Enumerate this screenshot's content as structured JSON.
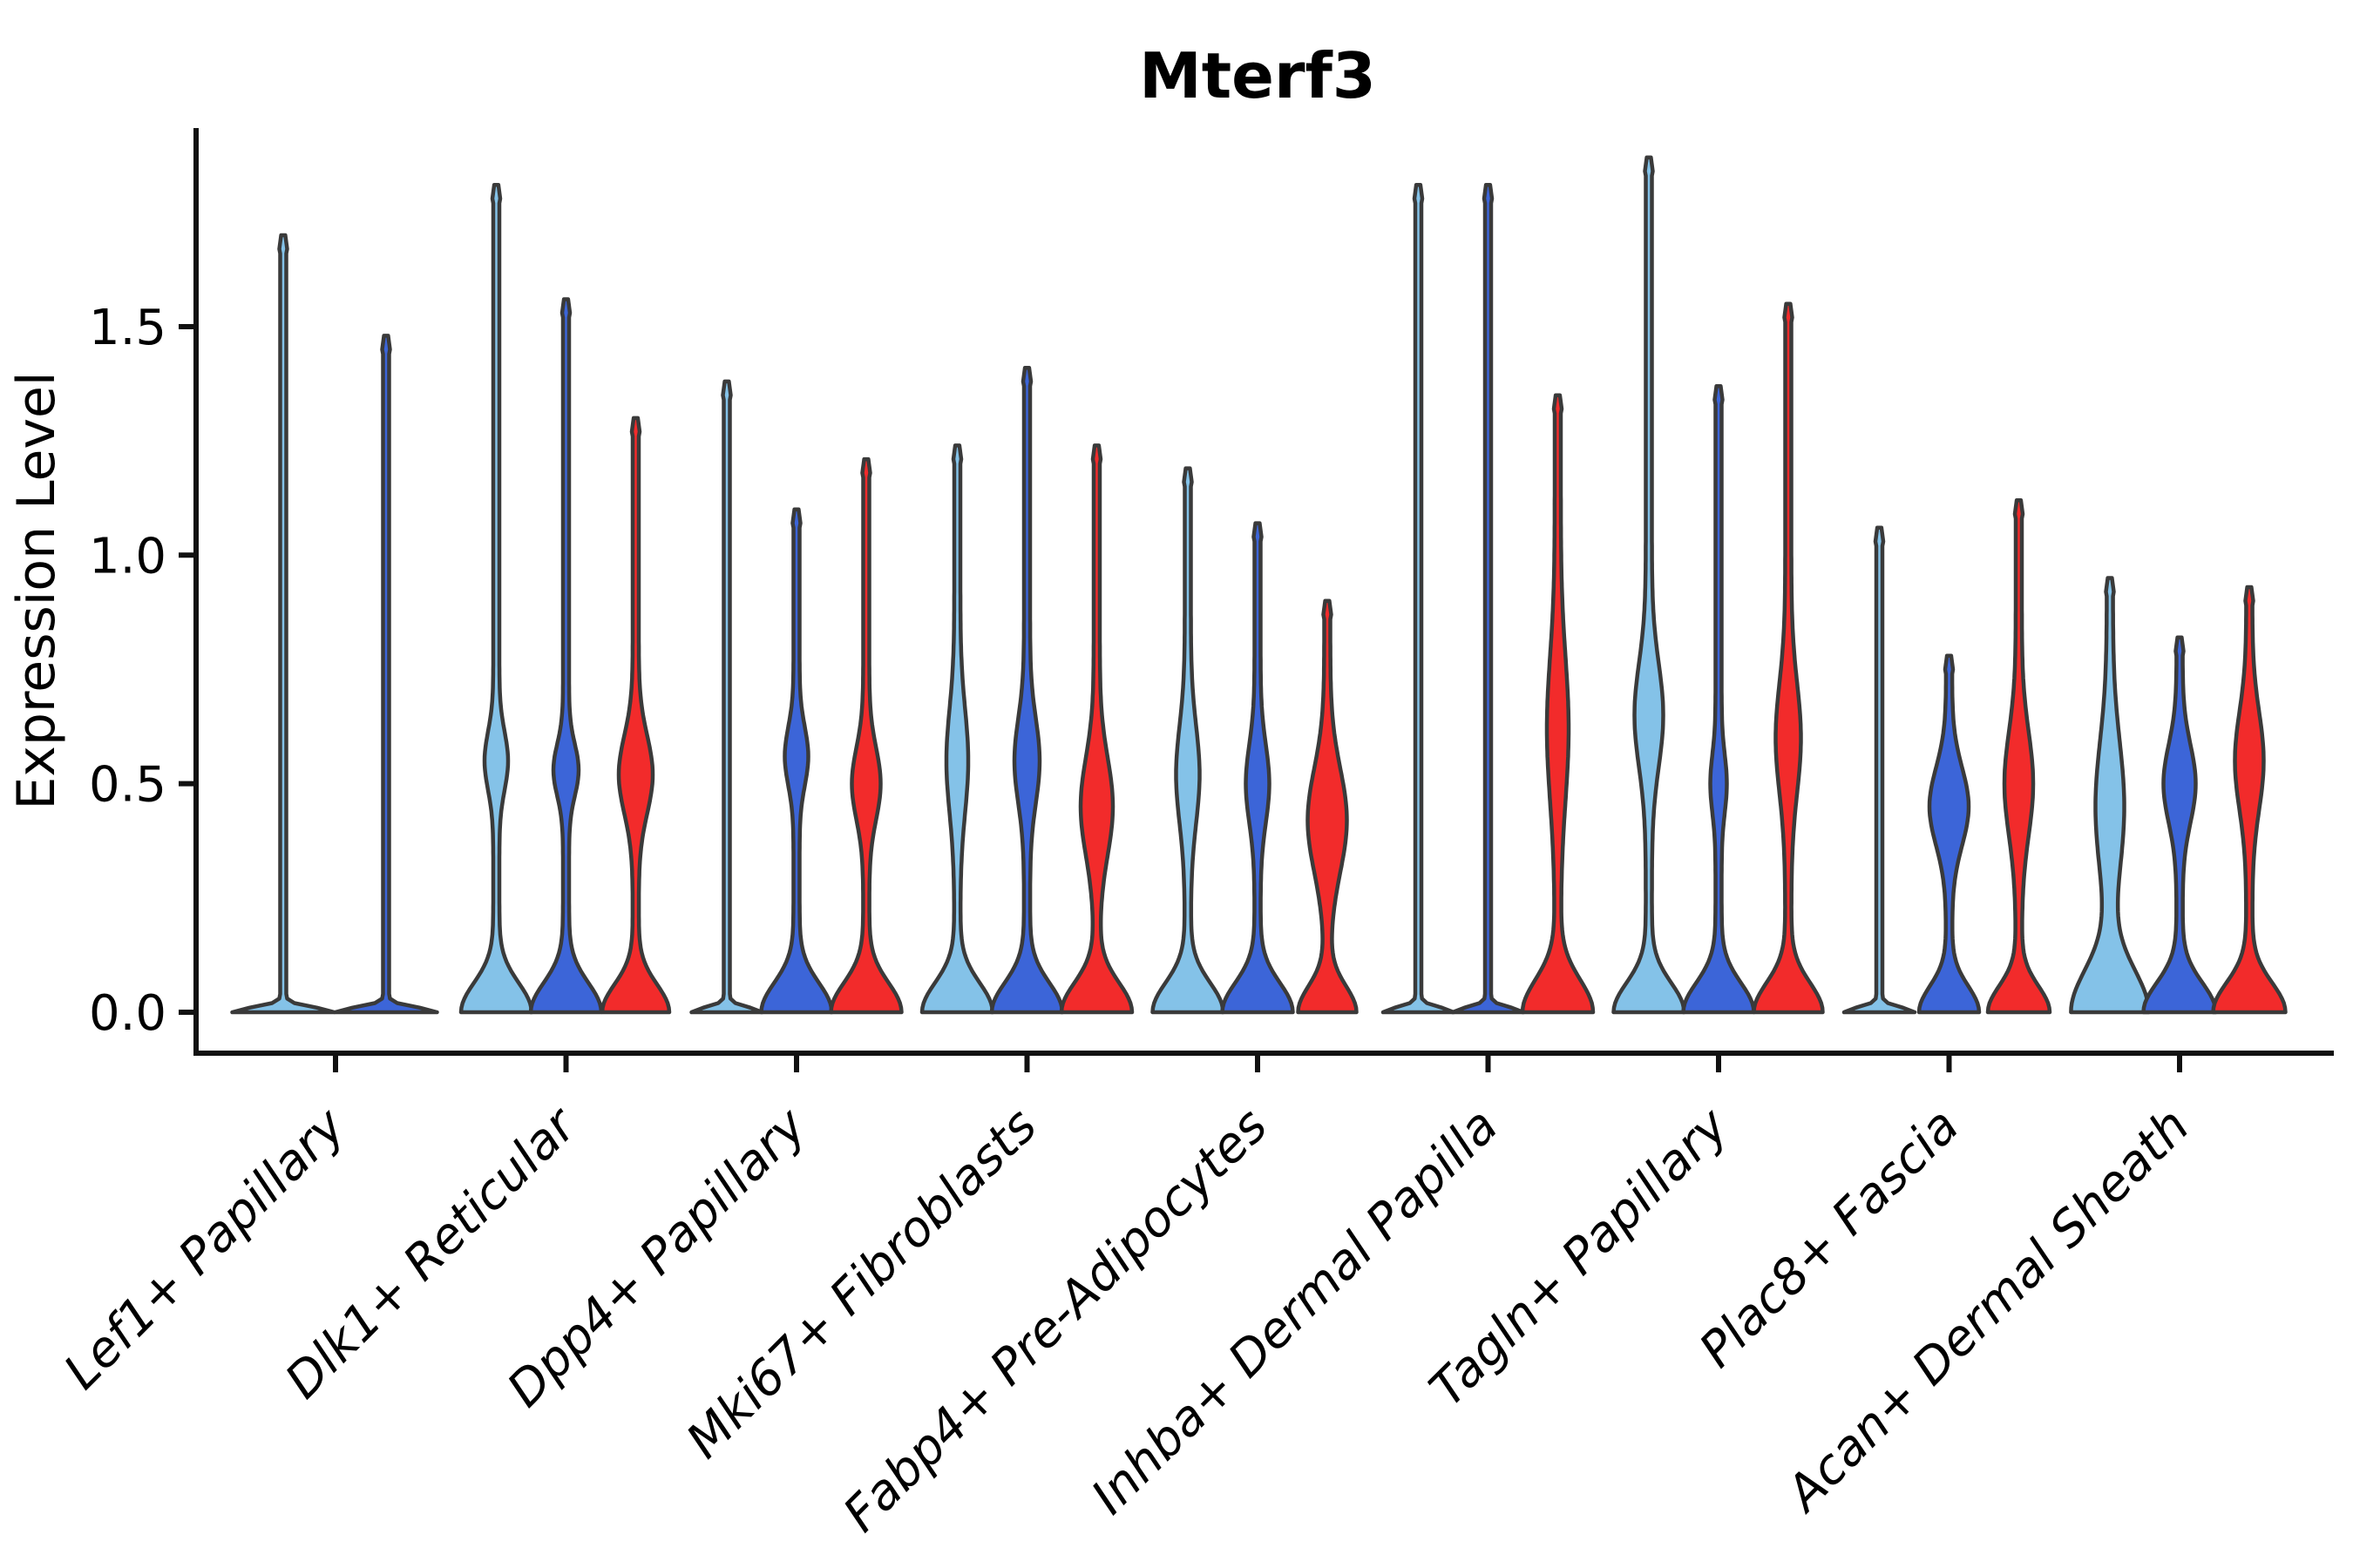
{
  "chart_data": {
    "type": "violin",
    "title": "Mterf3",
    "ylabel": "Expression Level",
    "xlabel": "",
    "yticks": [
      "0.0",
      "0.5",
      "1.0",
      "1.5"
    ],
    "ytick_values": [
      0.0,
      0.5,
      1.0,
      1.5
    ],
    "ylim": [
      0,
      1.95
    ],
    "grid": false,
    "legend": "none",
    "outline_color": "#3A3A3A",
    "axis_color": "#111111",
    "series_colors": {
      "light_blue": "#84C2E8",
      "dark_blue": "#3C65D8",
      "red": "#F22B2B"
    },
    "categories": [
      "Lef1+ Papillary",
      "Dlk1+ Reticular",
      "Dpp4+ Papillary",
      "Mki67+ Fibroblasts",
      "Fabp4+ Pre-Adipocytes",
      "Inhba+ Dermal Papilla",
      "Tagln+ Papillary",
      "Plac8+ Fascia",
      "Acan+ Dermal Sheath"
    ],
    "groups": [
      {
        "category": "Lef1+ Papillary",
        "violins": [
          {
            "color": "light_blue",
            "offset": -60,
            "max": 1.7,
            "flat": true,
            "base_hw": 55,
            "base_decay": 0.015,
            "bulge": null
          },
          {
            "color": "dark_blue",
            "offset": 58,
            "max": 1.48,
            "flat": true,
            "base_hw": 55,
            "base_decay": 0.015,
            "bulge": null
          }
        ]
      },
      {
        "category": "Dlk1+ Reticular",
        "violins": [
          {
            "color": "light_blue",
            "offset": -80,
            "max": 1.81,
            "flat": false,
            "base_hw": 37,
            "base_decay": 0.09,
            "bulge": {
              "c": 0.55,
              "s": 0.09,
              "hw": 10
            }
          },
          {
            "color": "dark_blue",
            "offset": 0,
            "max": 1.56,
            "flat": false,
            "base_hw": 37,
            "base_decay": 0.09,
            "bulge": {
              "c": 0.53,
              "s": 0.08,
              "hw": 11
            }
          },
          {
            "color": "red",
            "offset": 80,
            "max": 1.3,
            "flat": false,
            "base_hw": 35,
            "base_decay": 0.085,
            "bulge": {
              "c": 0.52,
              "s": 0.12,
              "hw": 16
            }
          }
        ]
      },
      {
        "category": "Dpp4+ Papillary",
        "violins": [
          {
            "color": "light_blue",
            "offset": -80,
            "max": 1.38,
            "flat": true,
            "base_hw": 37,
            "base_decay": 0.015,
            "bulge": null
          },
          {
            "color": "dark_blue",
            "offset": 0,
            "max": 1.1,
            "flat": false,
            "base_hw": 37,
            "base_decay": 0.09,
            "bulge": {
              "c": 0.56,
              "s": 0.09,
              "hw": 10
            }
          },
          {
            "color": "red",
            "offset": 80,
            "max": 1.21,
            "flat": false,
            "base_hw": 37,
            "base_decay": 0.09,
            "bulge": {
              "c": 0.5,
              "s": 0.11,
              "hw": 13
            }
          }
        ]
      },
      {
        "category": "Mki67+ Fibroblasts",
        "violins": [
          {
            "color": "light_blue",
            "offset": -80,
            "max": 1.24,
            "flat": false,
            "base_hw": 37,
            "base_decay": 0.09,
            "bulge": {
              "c": 0.55,
              "s": 0.16,
              "hw": 9
            }
          },
          {
            "color": "dark_blue",
            "offset": 0,
            "max": 1.41,
            "flat": false,
            "base_hw": 37,
            "base_decay": 0.09,
            "bulge": {
              "c": 0.55,
              "s": 0.13,
              "hw": 11
            }
          },
          {
            "color": "red",
            "offset": 80,
            "max": 1.24,
            "flat": false,
            "base_hw": 37,
            "base_decay": 0.09,
            "bulge": {
              "c": 0.45,
              "s": 0.15,
              "hw": 15
            }
          }
        ]
      },
      {
        "category": "Fabp4+ Pre-Adipocytes",
        "violins": [
          {
            "color": "light_blue",
            "offset": -80,
            "max": 1.19,
            "flat": false,
            "base_hw": 37,
            "base_decay": 0.09,
            "bulge": {
              "c": 0.52,
              "s": 0.15,
              "hw": 10
            }
          },
          {
            "color": "dark_blue",
            "offset": 0,
            "max": 1.07,
            "flat": false,
            "base_hw": 37,
            "base_decay": 0.09,
            "bulge": {
              "c": 0.5,
              "s": 0.12,
              "hw": 10
            }
          },
          {
            "color": "red",
            "offset": 80,
            "max": 0.9,
            "flat": false,
            "base_hw": 30,
            "base_decay": 0.08,
            "bulge": {
              "c": 0.42,
              "s": 0.16,
              "hw": 19
            }
          }
        ]
      },
      {
        "category": "Inhba+ Dermal Papilla",
        "violins": [
          {
            "color": "light_blue",
            "offset": -80,
            "max": 1.81,
            "flat": true,
            "base_hw": 37,
            "base_decay": 0.015,
            "bulge": null
          },
          {
            "color": "dark_blue",
            "offset": 0,
            "max": 1.81,
            "flat": true,
            "base_hw": 37,
            "base_decay": 0.015,
            "bulge": null
          },
          {
            "color": "red",
            "offset": 80,
            "max": 1.35,
            "flat": false,
            "base_hw": 37,
            "base_decay": 0.1,
            "bulge": {
              "c": 0.62,
              "s": 0.22,
              "hw": 9
            }
          }
        ]
      },
      {
        "category": "Tagln+ Papillary",
        "violins": [
          {
            "color": "light_blue",
            "offset": -80,
            "max": 1.87,
            "flat": false,
            "base_hw": 37,
            "base_decay": 0.09,
            "bulge": {
              "c": 0.65,
              "s": 0.16,
              "hw": 13
            }
          },
          {
            "color": "dark_blue",
            "offset": 0,
            "max": 1.37,
            "flat": false,
            "base_hw": 37,
            "base_decay": 0.09,
            "bulge": {
              "c": 0.5,
              "s": 0.09,
              "hw": 6
            }
          },
          {
            "color": "red",
            "offset": 80,
            "max": 1.55,
            "flat": false,
            "base_hw": 36,
            "base_decay": 0.09,
            "bulge": {
              "c": 0.6,
              "s": 0.17,
              "hw": 11
            }
          }
        ]
      },
      {
        "category": "Plac8+ Fascia",
        "violins": [
          {
            "color": "light_blue",
            "offset": -80,
            "max": 1.06,
            "flat": true,
            "base_hw": 37,
            "base_decay": 0.015,
            "bulge": null
          },
          {
            "color": "dark_blue",
            "offset": 0,
            "max": 0.78,
            "flat": false,
            "base_hw": 31,
            "base_decay": 0.08,
            "bulge": {
              "c": 0.45,
              "s": 0.12,
              "hw": 19
            }
          },
          {
            "color": "red",
            "offset": 80,
            "max": 1.12,
            "flat": false,
            "base_hw": 32,
            "base_decay": 0.08,
            "bulge": {
              "c": 0.5,
              "s": 0.16,
              "hw": 13
            }
          }
        ]
      },
      {
        "category": "Acan+ Dermal Sheath",
        "violins": [
          {
            "color": "light_blue",
            "offset": -80,
            "max": 0.95,
            "flat": false,
            "base_hw": 41,
            "base_decay": 0.13,
            "bulge": {
              "c": 0.45,
              "s": 0.2,
              "hw": 13
            }
          },
          {
            "color": "dark_blue",
            "offset": 0,
            "max": 0.82,
            "flat": false,
            "base_hw": 38,
            "base_decay": 0.09,
            "bulge": {
              "c": 0.5,
              "s": 0.12,
              "hw": 15
            }
          },
          {
            "color": "red",
            "offset": 80,
            "max": 0.93,
            "flat": false,
            "base_hw": 38,
            "base_decay": 0.09,
            "bulge": {
              "c": 0.55,
              "s": 0.15,
              "hw": 13
            }
          }
        ]
      }
    ]
  }
}
